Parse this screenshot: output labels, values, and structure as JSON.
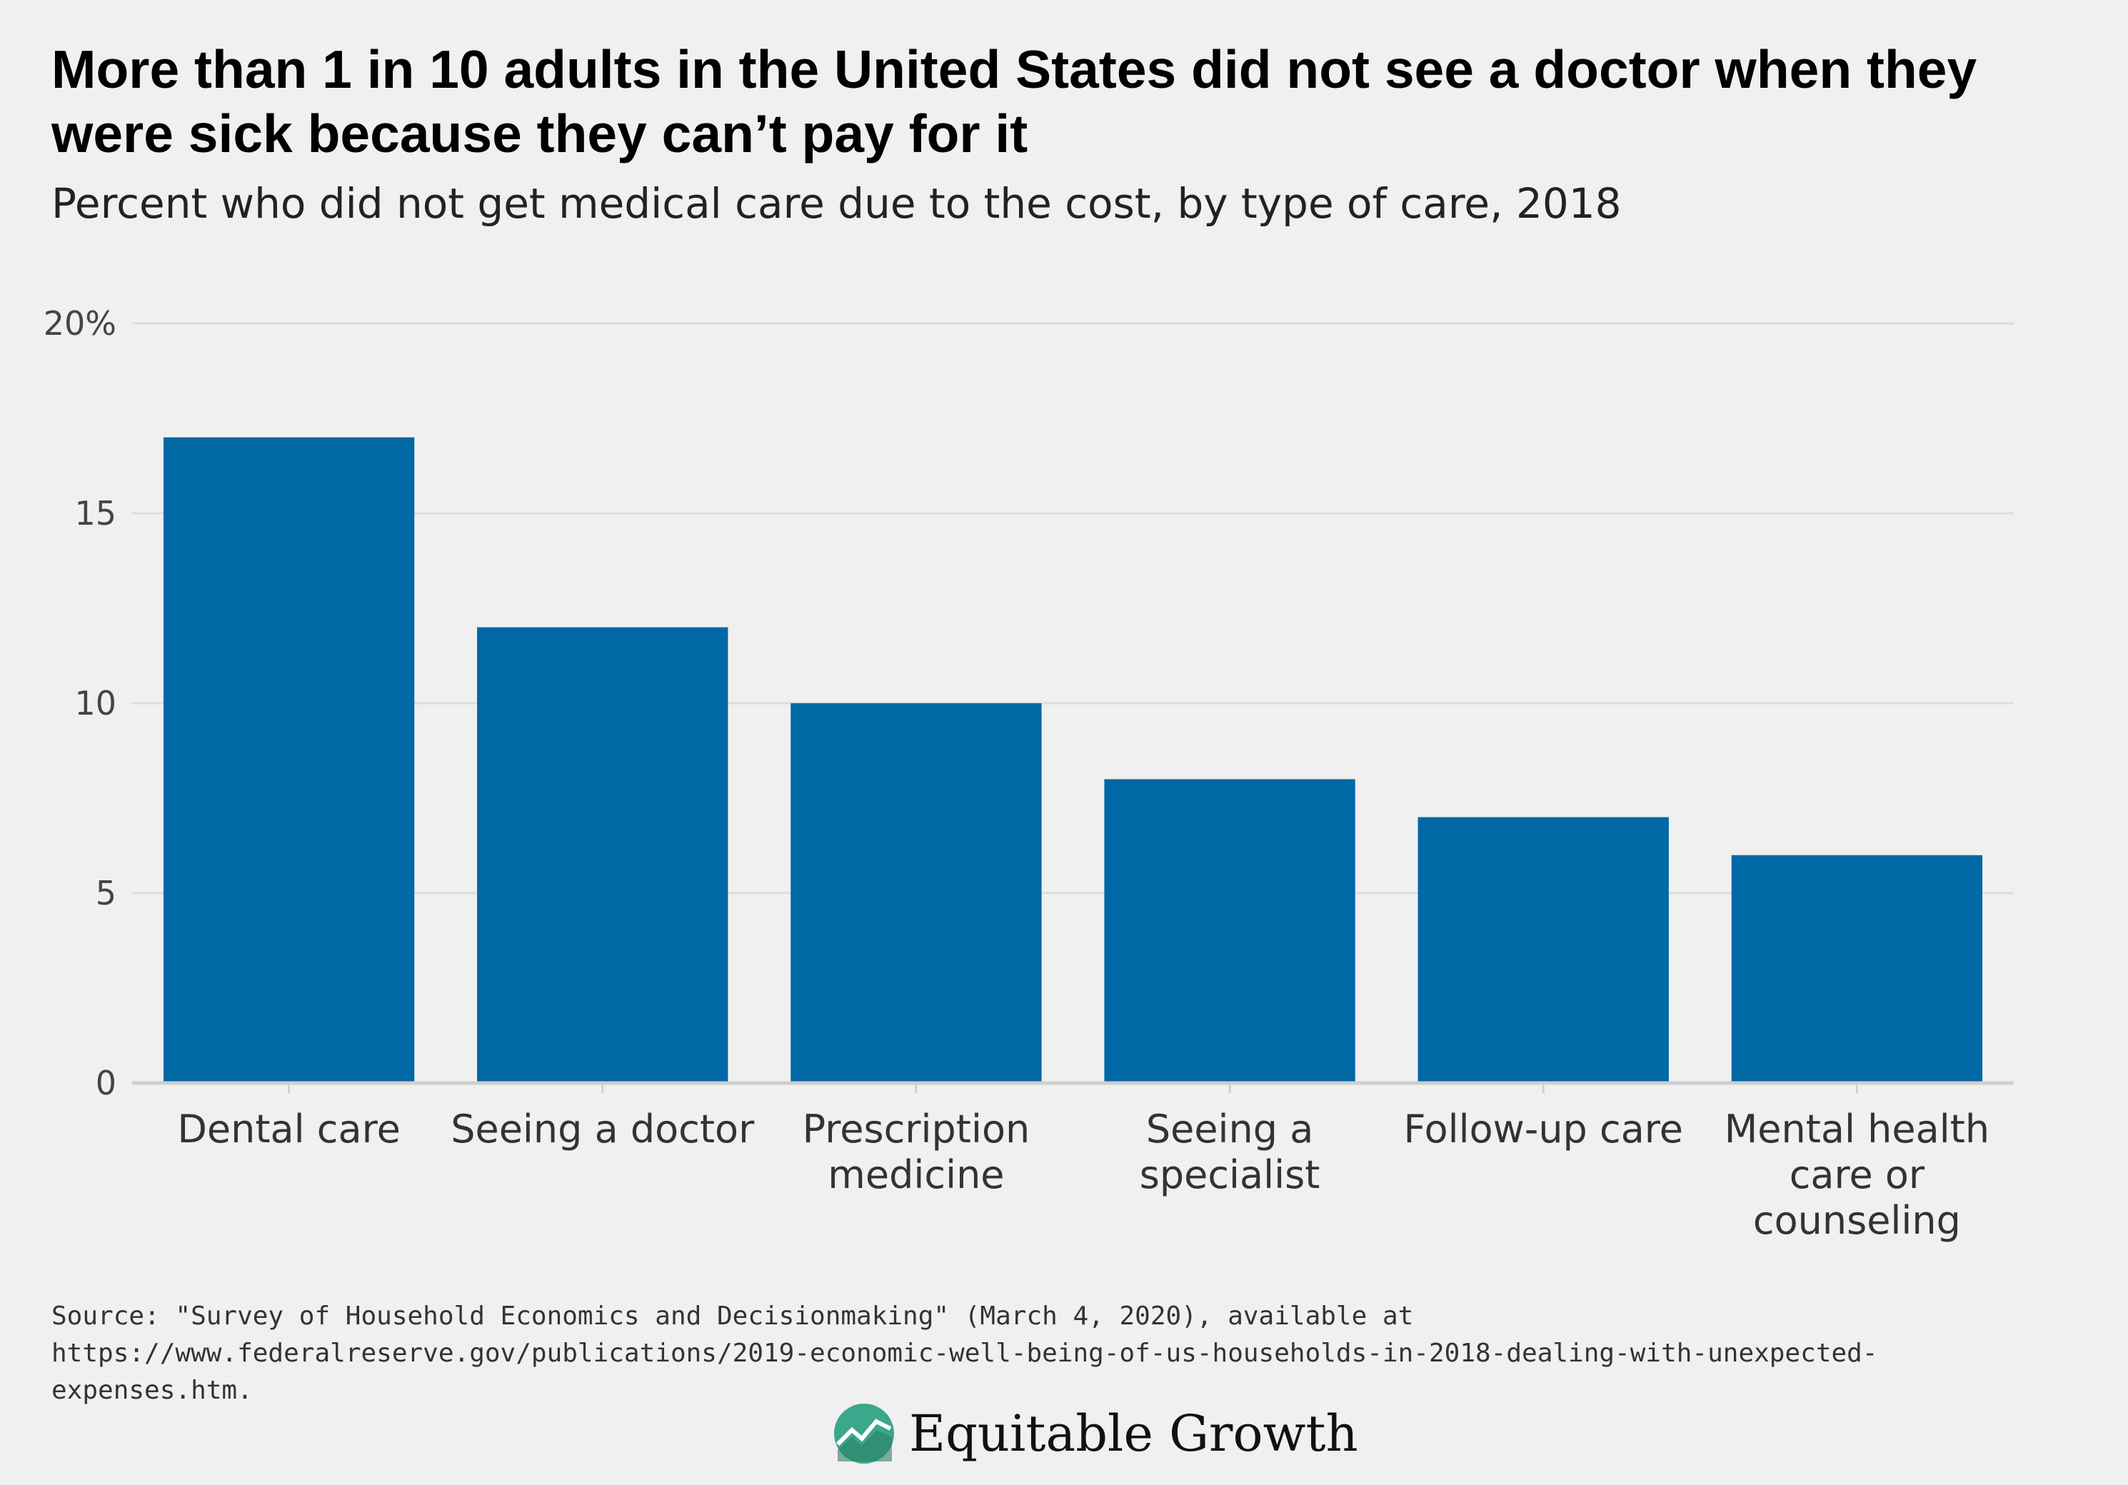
{
  "header": {
    "title": "More than 1 in 10 adults in the United States did not see a doctor when they were sick because they can’t pay for it",
    "subtitle": "Percent who did not get medical care due to the cost, by type of care, 2018"
  },
  "footer": {
    "source": "Source: \"Survey of Household Economics and Decisionmaking\" (March 4, 2020), available at https://www.federalreserve.gov/publications/2019-economic-well-being-of-us-households-in-2018-dealing-with-unexpected-expenses.htm.",
    "logo_text": "Equitable Growth"
  },
  "colors": {
    "bar": "#0068a5",
    "grid": "#dcdcdc",
    "axis": "#cfcfcf",
    "logo_green": "#3aa88a"
  },
  "chart_data": {
    "type": "bar",
    "categories": [
      [
        "Dental care"
      ],
      [
        "Seeing a doctor"
      ],
      [
        "Prescription",
        "medicine"
      ],
      [
        "Seeing a",
        "specialist"
      ],
      [
        "Follow-up care"
      ],
      [
        "Mental health",
        "care or",
        "counseling"
      ]
    ],
    "values": [
      17,
      12,
      10,
      8,
      7,
      6
    ],
    "ylim": [
      0,
      20
    ],
    "yticks": [
      0,
      5,
      10,
      15,
      20
    ],
    "ytick_labels": [
      "0",
      "5",
      "10",
      "15",
      "20%"
    ],
    "grid": true,
    "legend": "none"
  }
}
